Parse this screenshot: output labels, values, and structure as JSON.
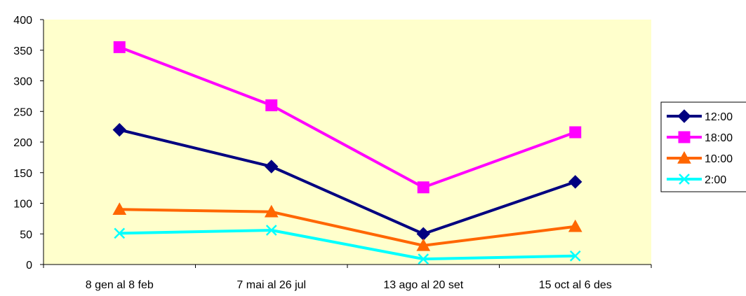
{
  "chart_data": {
    "type": "line",
    "categories": [
      "8 gen al 8 feb",
      "7 mai al 26 jul",
      "13 ago al 20 set",
      "15 oct al 6 des"
    ],
    "series": [
      {
        "name": "12:00",
        "values": [
          220,
          160,
          50,
          135
        ],
        "color": "#000080",
        "marker": "diamond"
      },
      {
        "name": "18:00",
        "values": [
          355,
          260,
          126,
          216
        ],
        "color": "#FF00FF",
        "marker": "square"
      },
      {
        "name": "10:00",
        "values": [
          90,
          86,
          31,
          62
        ],
        "color": "#FF6600",
        "marker": "triangle"
      },
      {
        "name": "2:00",
        "values": [
          51,
          56,
          9,
          14
        ],
        "color": "#00FFFF",
        "marker": "x"
      }
    ],
    "ylim": [
      0,
      400
    ],
    "yticks": [
      0,
      50,
      100,
      150,
      200,
      250,
      300,
      350,
      400
    ],
    "title": "",
    "xlabel": "",
    "ylabel": "",
    "grid": false,
    "legend_position": "right",
    "plot_background": "#FFFFCC"
  }
}
